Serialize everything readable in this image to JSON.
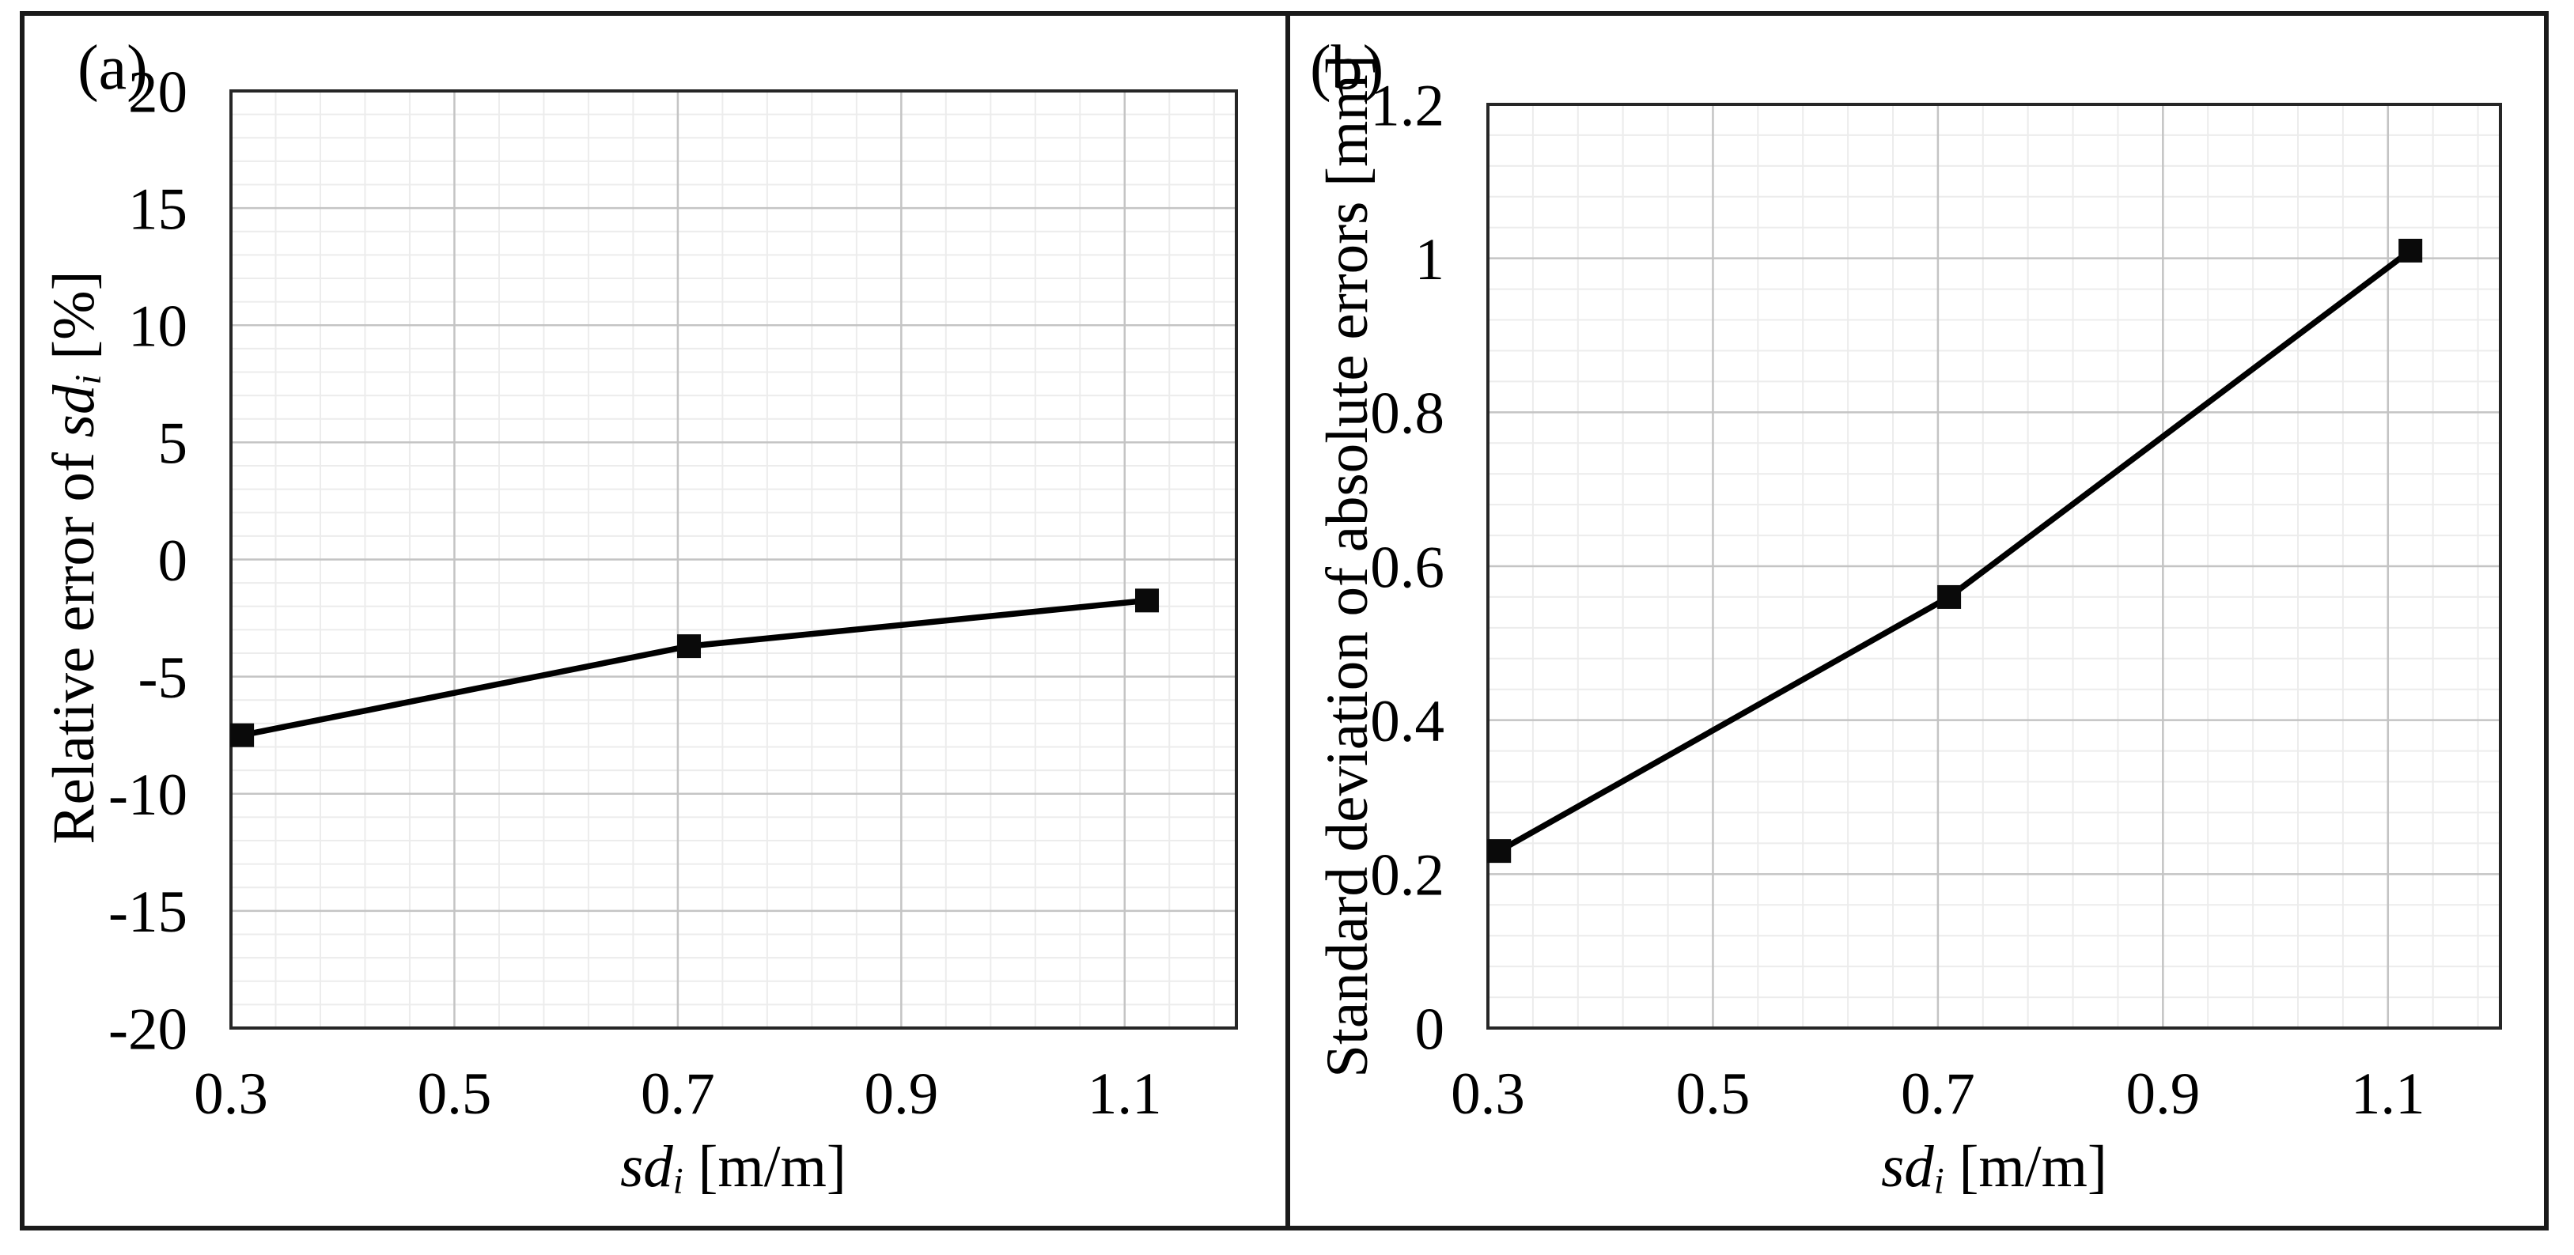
{
  "colors": {
    "background": "#ffffff",
    "figure_border": "#1a1a1a",
    "axis_line": "#262626",
    "grid_major": "#c4c4c4",
    "grid_minor": "#ececec",
    "series_line": "#000000",
    "marker_fill": "#0a0a0a",
    "text": "#000000"
  },
  "panels": [
    {
      "letter": "(a)",
      "y_title": {
        "pre": "Relative error of ",
        "it": "sd",
        "sub": "i",
        "post": " [%]"
      },
      "x_title": {
        "pre": "",
        "it": "sd",
        "sub": "i",
        "post": " [m/m]"
      }
    },
    {
      "letter": "(b)",
      "y_title": {
        "pre": "Standard deviation of absolute errors [mm]",
        "it": "",
        "sub": "",
        "post": ""
      },
      "x_title": {
        "pre": "",
        "it": "sd",
        "sub": "i",
        "post": " [m/m]"
      }
    }
  ],
  "chart_data": [
    {
      "type": "line",
      "panel": "(a)",
      "title": "",
      "xlabel": "sdi [m/m]",
      "ylabel": "Relative error of sdi [%]",
      "series": [
        {
          "name": "Relative error of sdi",
          "x": [
            0.31,
            0.71,
            1.12
          ],
          "y": [
            -7.5,
            -3.7,
            -1.75
          ]
        }
      ],
      "xlim": [
        0.3,
        1.2
      ],
      "ylim": [
        -20,
        20
      ],
      "x_major_ticks": [
        0.3,
        0.5,
        0.7,
        0.9,
        1.1
      ],
      "x_tick_labels": [
        "0.3",
        "0.5",
        "0.7",
        "0.9",
        "1.1"
      ],
      "y_major_ticks": [
        20,
        15,
        10,
        5,
        0,
        -5,
        -10,
        -15,
        -20
      ],
      "y_tick_labels": [
        "20",
        "15",
        "10",
        "5",
        "0",
        "-5",
        "-10",
        "-15",
        "-20"
      ],
      "x_minor_step": 0.04,
      "y_minor_step": 1,
      "grid": true,
      "legend": null,
      "marker": "square",
      "line_style": "solid"
    },
    {
      "type": "line",
      "panel": "(b)",
      "title": "",
      "xlabel": "sdi [m/m]",
      "ylabel": "Standard deviation of absolute errors [mm]",
      "series": [
        {
          "name": "Standard deviation of absolute errors",
          "x": [
            0.31,
            0.71,
            1.12
          ],
          "y": [
            0.23,
            0.56,
            1.01
          ]
        }
      ],
      "xlim": [
        0.3,
        1.2
      ],
      "ylim": [
        0,
        1.2
      ],
      "x_major_ticks": [
        0.3,
        0.5,
        0.7,
        0.9,
        1.1
      ],
      "x_tick_labels": [
        "0.3",
        "0.5",
        "0.7",
        "0.9",
        "1.1"
      ],
      "y_major_ticks": [
        1.2,
        1,
        0.8,
        0.6,
        0.4,
        0.2,
        0
      ],
      "y_tick_labels": [
        "1.2",
        "1",
        "0.8",
        "0.6",
        "0.4",
        "0.2",
        "0"
      ],
      "x_minor_step": 0.04,
      "y_minor_step": 0.04,
      "grid": true,
      "legend": null,
      "marker": "square",
      "line_style": "solid"
    }
  ]
}
